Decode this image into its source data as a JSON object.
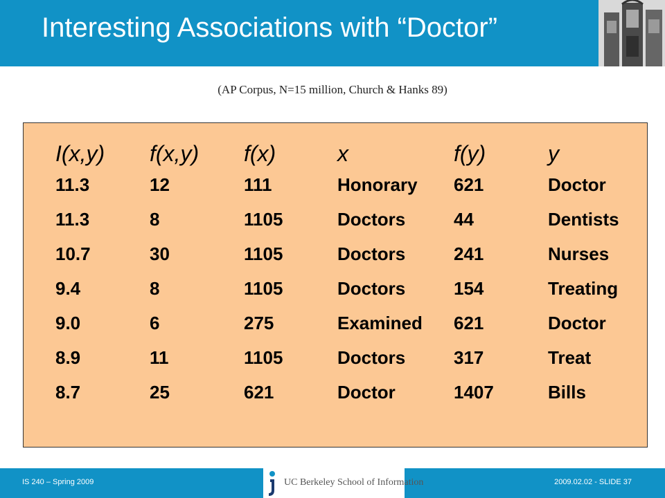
{
  "slide": {
    "title": "Interesting Associations with “Doctor”",
    "subtitle": "(AP Corpus, N=15 million, Church & Hanks 89)",
    "header_image": "university-building-photo"
  },
  "table": {
    "headers": [
      "I(x,y)",
      "f(x,y)",
      "f(x)",
      "x",
      "f(y)",
      "y"
    ],
    "rows": [
      [
        "11.3",
        "12",
        "111",
        "Honorary",
        "621",
        "Doctor"
      ],
      [
        "11.3",
        "8",
        "1105",
        "Doctors",
        "44",
        "Dentists"
      ],
      [
        "10.7",
        "30",
        "1105",
        "Doctors",
        "241",
        "Nurses"
      ],
      [
        "9.4",
        "8",
        "1105",
        "Doctors",
        "154",
        "Treating"
      ],
      [
        "9.0",
        "6",
        "275",
        "Examined",
        "621",
        "Doctor"
      ],
      [
        "8.9",
        "11",
        "1105",
        "Doctors",
        "317",
        "Treat"
      ],
      [
        "8.7",
        "25",
        "621",
        "Doctor",
        "1407",
        "Bills"
      ]
    ]
  },
  "footer": {
    "left": "IS 240 – Spring 2009",
    "logo_text": "UC Berkeley School of Information",
    "right": "2009.02.02 - SLIDE 37"
  },
  "colors": {
    "title_bar": "#1192c6",
    "panel": "#fcc894"
  }
}
